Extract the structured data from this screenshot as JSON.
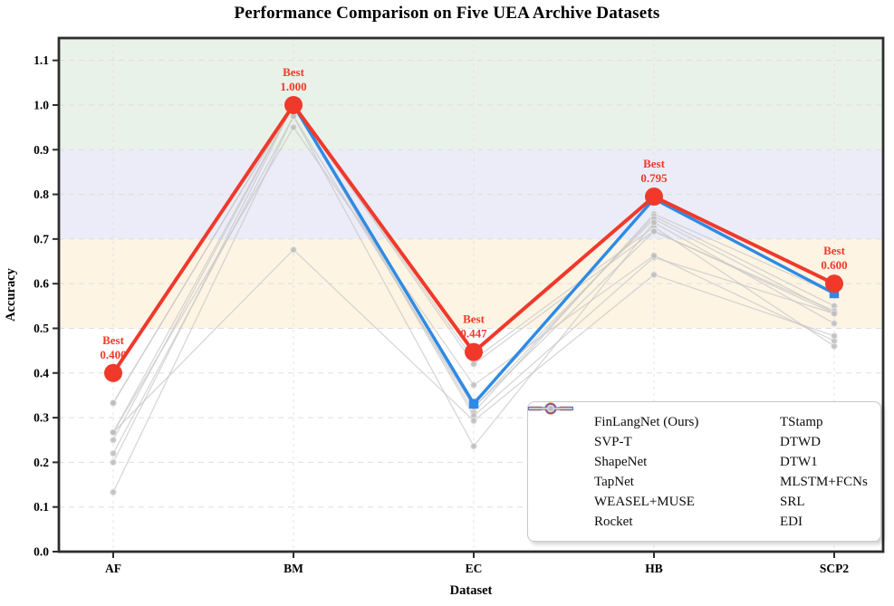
{
  "title": "Performance Comparison on Five UEA Archive Datasets",
  "chart_data": {
    "type": "line",
    "x": [
      "AF",
      "BM",
      "EC",
      "HB",
      "SCP2"
    ],
    "xlabel": "Dataset",
    "ylabel": "Accuracy",
    "ylim": [
      0.0,
      1.15
    ],
    "yticks": [
      0.0,
      0.1,
      0.2,
      0.3,
      0.4,
      0.5,
      0.6,
      0.7,
      0.8,
      0.9,
      1.0,
      1.1
    ],
    "ytick_labels": [
      "0.0",
      "0.1",
      "0.2",
      "0.3",
      "0.4",
      "0.5",
      "0.6",
      "0.7",
      "0.8",
      "0.9",
      "1.0",
      "1.1"
    ],
    "grid": true,
    "legend_position": "lower right",
    "frame_color": "#2d2d2d",
    "grid_color": "#dcdcdc",
    "bands": [
      {
        "from": 0.9,
        "to": 1.15,
        "color": "#e9f2e8"
      },
      {
        "from": 0.7,
        "to": 0.9,
        "color": "#ebecf7"
      },
      {
        "from": 0.5,
        "to": 0.7,
        "color": "#fdf4e4"
      }
    ],
    "series": [
      {
        "name": "FinLangNet (Ours)",
        "color": "#f0392b",
        "style": "emphasis-red",
        "marker": "circle",
        "z": 3,
        "values": [
          0.4,
          1.0,
          0.447,
          0.795,
          0.6
        ]
      },
      {
        "name": "SVP-T",
        "color": "#2e8ae6",
        "style": "emphasis-blue",
        "marker": "square",
        "z": 2,
        "values": [
          0.4,
          1.0,
          0.331,
          0.79,
          0.578
        ]
      },
      {
        "name": "ShapeNet",
        "color": "#c6c6c6",
        "style": "baseline",
        "marker": "dot",
        "z": 1,
        "values": [
          0.4,
          1.0,
          0.312,
          0.756,
          0.578
        ]
      },
      {
        "name": "TapNet",
        "color": "#c6c6c6",
        "style": "baseline",
        "marker": "dot",
        "z": 1,
        "values": [
          0.333,
          1.0,
          0.323,
          0.751,
          0.55
        ]
      },
      {
        "name": "WEASEL+MUSE",
        "color": "#c6c6c6",
        "style": "baseline",
        "marker": "dot",
        "z": 1,
        "values": [
          0.333,
          1.0,
          0.43,
          0.727,
          0.46
        ]
      },
      {
        "name": "Rocket",
        "color": "#c6c6c6",
        "style": "baseline",
        "marker": "dot",
        "z": 1,
        "values": [
          0.2,
          1.0,
          0.42,
          0.718,
          0.533
        ]
      },
      {
        "name": "TStamp",
        "color": "#c6c6c6",
        "style": "baseline",
        "marker": "dot",
        "z": 1,
        "values": [
          0.25,
          1.0,
          0.337,
          0.745,
          0.535
        ]
      },
      {
        "name": "DTWD",
        "color": "#c6c6c6",
        "style": "baseline",
        "marker": "dot",
        "z": 1,
        "values": [
          0.22,
          0.975,
          0.323,
          0.717,
          0.539
        ]
      },
      {
        "name": "DTW1",
        "color": "#c6c6c6",
        "style": "baseline",
        "marker": "dot",
        "z": 1,
        "values": [
          0.267,
          1.0,
          0.304,
          0.659,
          0.533
        ]
      },
      {
        "name": "MLSTM+FCNs",
        "color": "#c6c6c6",
        "style": "baseline",
        "marker": "dot",
        "z": 1,
        "values": [
          0.267,
          0.95,
          0.373,
          0.663,
          0.472
        ]
      },
      {
        "name": "SRL",
        "color": "#c6c6c6",
        "style": "baseline",
        "marker": "dot",
        "z": 1,
        "values": [
          0.133,
          0.975,
          0.236,
          0.737,
          0.511
        ]
      },
      {
        "name": "EDI",
        "color": "#c6c6c6",
        "style": "baseline",
        "marker": "dot",
        "z": 1,
        "values": [
          0.267,
          0.676,
          0.293,
          0.62,
          0.483
        ]
      }
    ],
    "annotations": [
      {
        "x": "AF",
        "label": "Best",
        "value": "0.400"
      },
      {
        "x": "BM",
        "label": "Best",
        "value": "1.000"
      },
      {
        "x": "EC",
        "label": "Best",
        "value": "0.447"
      },
      {
        "x": "HB",
        "label": "Best",
        "value": "0.795"
      },
      {
        "x": "SCP2",
        "label": "Best",
        "value": "0.600"
      }
    ]
  }
}
